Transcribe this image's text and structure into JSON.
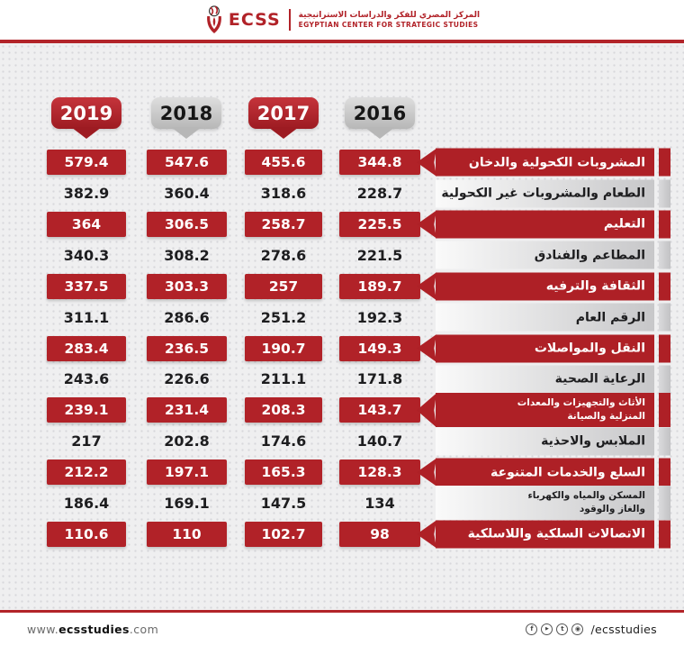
{
  "header": {
    "logo_text": "ECSS",
    "org_name_ar": "المركز المصري للفكر والدراسات الاستراتيجية",
    "org_name_en": "EGYPTIAN CENTER FOR STRATEGIC STUDIES"
  },
  "years": [
    "2019",
    "2018",
    "2017",
    "2016"
  ],
  "chart_data": {
    "type": "table",
    "columns": [
      "2019",
      "2018",
      "2017",
      "2016"
    ],
    "rows": [
      {
        "label": "المشروبات الكحولية والدخان",
        "label_lines": [
          "المشروبات الكحولية والدخان"
        ],
        "values": [
          579.4,
          547.6,
          455.6,
          344.8
        ],
        "highlighted": true
      },
      {
        "label": "الطعام والمشروبات غير الكحولية",
        "label_lines": [
          "الطعام والمشروبات غير الكحولية"
        ],
        "values": [
          382.9,
          360.4,
          318.6,
          228.7
        ],
        "highlighted": false
      },
      {
        "label": "التعليم",
        "label_lines": [
          "التعليم"
        ],
        "values": [
          364,
          306.5,
          258.7,
          225.5
        ],
        "highlighted": true
      },
      {
        "label": "المطاعم والفنادق",
        "label_lines": [
          "المطاعم والفنادق"
        ],
        "values": [
          340.3,
          308.2,
          278.6,
          221.5
        ],
        "highlighted": false
      },
      {
        "label": "الثقافة والترفيه",
        "label_lines": [
          "الثقافة والترفيه"
        ],
        "values": [
          337.5,
          303.3,
          257,
          189.7
        ],
        "highlighted": true
      },
      {
        "label": "الرقم العام",
        "label_lines": [
          "الرقم العام"
        ],
        "values": [
          311.1,
          286.6,
          251.2,
          192.3
        ],
        "highlighted": false
      },
      {
        "label": "النقل والمواصلات",
        "label_lines": [
          "النقل والمواصلات"
        ],
        "values": [
          283.4,
          236.5,
          190.7,
          149.3
        ],
        "highlighted": true
      },
      {
        "label": "الرعاية الصحية",
        "label_lines": [
          "الرعاية الصحية"
        ],
        "values": [
          243.6,
          226.6,
          211.1,
          171.8
        ],
        "highlighted": false
      },
      {
        "label": "الأثاث والتجهيزات والمعدات المنزلية والصيانة",
        "label_lines": [
          "الأثاث والتجهيزات والمعدات",
          "المنزلية والصيانة"
        ],
        "values": [
          239.1,
          231.4,
          208.3,
          143.7
        ],
        "highlighted": true
      },
      {
        "label": "الملابس والاحذية",
        "label_lines": [
          "الملابس والاحذية"
        ],
        "values": [
          217,
          202.8,
          174.6,
          140.7
        ],
        "highlighted": false
      },
      {
        "label": "السلع والخدمات المتنوعة",
        "label_lines": [
          "السلع والخدمات المتنوعة"
        ],
        "values": [
          212.2,
          197.1,
          165.3,
          128.3
        ],
        "highlighted": true
      },
      {
        "label": "المسكن والمياه والكهرباء والغاز والوقود",
        "label_lines": [
          "المسكن والمياه والكهرباء",
          "والغاز والوقود"
        ],
        "values": [
          186.4,
          169.1,
          147.5,
          134
        ],
        "highlighted": false
      },
      {
        "label": "الاتصالات السلكية واللاسلكية",
        "label_lines": [
          "الاتصالات السلكية واللاسلكية"
        ],
        "values": [
          110.6,
          110,
          102.7,
          98
        ],
        "highlighted": true
      }
    ]
  },
  "footer": {
    "website_prefix": "www.",
    "website_bold": "ecsstudies",
    "website_suffix": ".com",
    "social_handle": "/ecsstudies",
    "icons": [
      {
        "name": "facebook-icon",
        "glyph": "f"
      },
      {
        "name": "youtube-icon",
        "glyph": "▶"
      },
      {
        "name": "twitter-icon",
        "glyph": "t"
      },
      {
        "name": "instagram-icon",
        "glyph": "◉"
      }
    ]
  },
  "colors": {
    "accent_red": "#ae2026",
    "box_red": "#b12228",
    "badge_red_top": "#c5343b",
    "badge_red_bottom": "#9d1b22",
    "badge_gray": "#c9c9c9",
    "background": "#efeff0",
    "divider_red": "#b22429"
  }
}
